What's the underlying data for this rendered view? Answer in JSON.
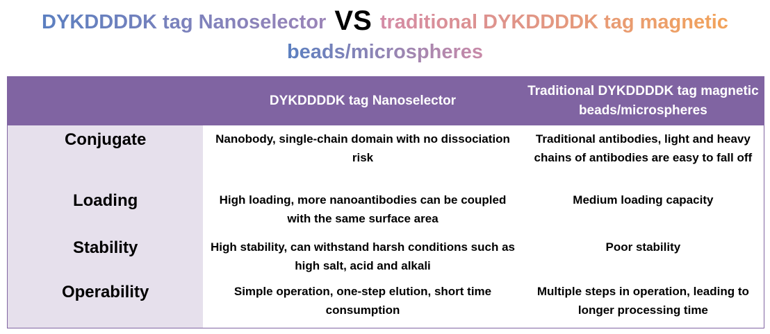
{
  "title": {
    "left": "DYKDDDDK tag Nanoselector",
    "vs": "VS",
    "right_line1": "traditional DYKDDDDK tag magnetic",
    "right_line2": "beads/microspheres"
  },
  "table": {
    "header": [
      "",
      "DYKDDDDK tag Nanoselector",
      "Traditional DYKDDDDK tag magnetic beads/microspheres"
    ],
    "rows": [
      [
        "Conjugate",
        "Nanobody, single-chain domain with no dissociation risk",
        "Traditional antibodies, light and heavy chains of antibodies are easy to fall off"
      ],
      [
        "Loading",
        "High loading, more nanoantibodies can be coupled with the same surface area",
        "Medium loading capacity"
      ],
      [
        "Stability",
        "High stability, can withstand harsh conditions such as high salt, acid and alkali",
        "Poor stability"
      ],
      [
        "Operability",
        "Simple operation, one-step elution, short time consumption",
        "Multiple steps in operation, leading to longer processing time"
      ]
    ]
  }
}
